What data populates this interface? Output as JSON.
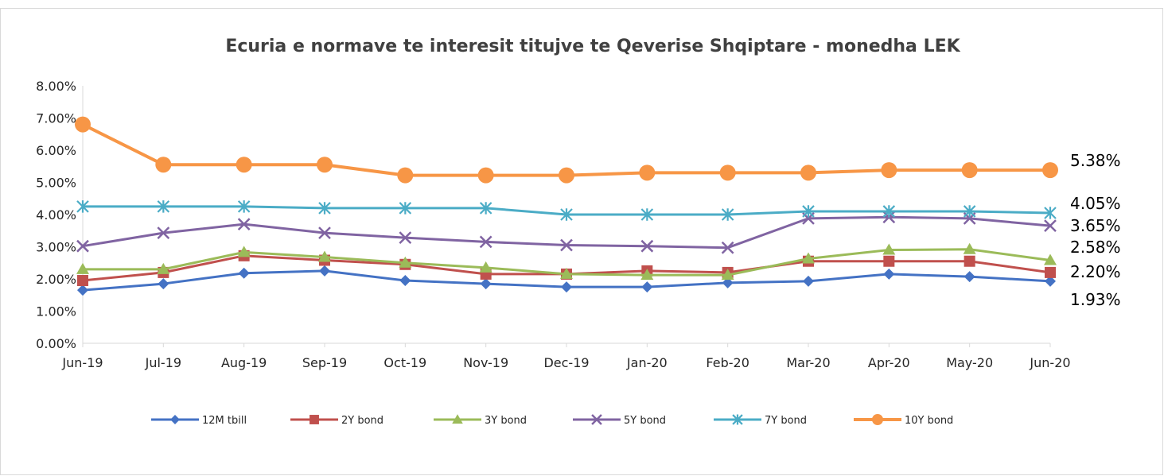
{
  "chart_data": {
    "type": "line",
    "title": "Ecuria e normave te interesit titujve te Qeverise Shqiptare - monedha LEK",
    "xlabel": "",
    "ylabel": "",
    "categories": [
      "Jun-19",
      "Jul-19",
      "Aug-19",
      "Sep-19",
      "Oct-19",
      "Nov-19",
      "Dec-19",
      "Jan-20",
      "Feb-20",
      "Mar-20",
      "Apr-20",
      "May-20",
      "Jun-20"
    ],
    "ylim": [
      0,
      8
    ],
    "yticks": [
      "0.00%",
      "1.00%",
      "2.00%",
      "3.00%",
      "4.00%",
      "5.00%",
      "6.00%",
      "7.00%",
      "8.00%"
    ],
    "grid": false,
    "legend_position": "bottom",
    "series": [
      {
        "name": "12M tbill",
        "color": "#4472c4",
        "marker": "diamond",
        "values": [
          1.65,
          1.85,
          2.18,
          2.25,
          1.95,
          1.85,
          1.75,
          1.75,
          1.88,
          1.93,
          2.15,
          2.07,
          1.93
        ]
      },
      {
        "name": "2Y bond",
        "color": "#c0504d",
        "marker": "square",
        "values": [
          1.95,
          2.2,
          2.72,
          2.58,
          2.45,
          2.15,
          2.15,
          2.25,
          2.2,
          2.55,
          2.55,
          2.55,
          2.2
        ]
      },
      {
        "name": "3Y bond",
        "color": "#9bbb59",
        "marker": "triangle",
        "values": [
          2.3,
          2.3,
          2.83,
          2.68,
          2.5,
          2.35,
          2.15,
          2.12,
          2.12,
          2.63,
          2.9,
          2.92,
          2.58
        ]
      },
      {
        "name": "5Y bond",
        "color": "#8064a2",
        "marker": "x",
        "values": [
          3.02,
          3.43,
          3.7,
          3.43,
          3.28,
          3.15,
          3.05,
          3.02,
          2.97,
          3.88,
          3.92,
          3.88,
          3.65
        ]
      },
      {
        "name": "7Y bond",
        "color": "#4bacc6",
        "marker": "star",
        "values": [
          4.25,
          4.25,
          4.25,
          4.2,
          4.2,
          4.2,
          4.0,
          4.0,
          4.0,
          4.1,
          4.1,
          4.1,
          4.05
        ]
      },
      {
        "name": "10Y bond",
        "color": "#f79646",
        "marker": "circle",
        "values": [
          6.8,
          5.55,
          5.55,
          5.55,
          5.22,
          5.22,
          5.22,
          5.3,
          5.3,
          5.3,
          5.38,
          5.38,
          5.38
        ]
      }
    ],
    "end_labels": [
      {
        "text": "5.38%",
        "value": 5.38
      },
      {
        "text": "4.05%",
        "value": 4.05
      },
      {
        "text": "3.65%",
        "value": 3.65
      },
      {
        "text": "2.58%",
        "value": 2.58
      },
      {
        "text": "2.20%",
        "value": 2.2
      },
      {
        "text": "1.93%",
        "value": 1.93
      }
    ]
  }
}
